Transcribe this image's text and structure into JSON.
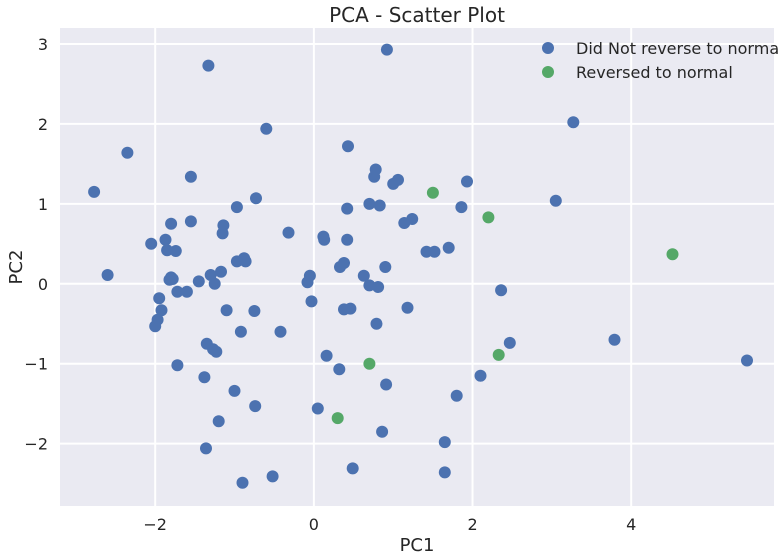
{
  "chart_data": {
    "type": "scatter",
    "title": "PCA - Scatter Plot",
    "xlabel": "PC1",
    "ylabel": "PC2",
    "xlim": [
      -3.2,
      5.8
    ],
    "ylim": [
      -2.78,
      3.2
    ],
    "xticks": [
      -2,
      0,
      2,
      4
    ],
    "yticks": [
      -2,
      -1,
      0,
      1,
      2,
      3
    ],
    "xtick_labels": [
      "−2",
      "0",
      "2",
      "4"
    ],
    "ytick_labels": [
      "−2",
      "−1",
      "0",
      "1",
      "2",
      "3"
    ],
    "grid": true,
    "legend_position": "top-right",
    "series": [
      {
        "name": "Did Not reverse to normal",
        "color": "#4C72B0",
        "points": [
          [
            -2.77,
            1.15
          ],
          [
            -2.6,
            0.11
          ],
          [
            -2.35,
            1.64
          ],
          [
            -2.05,
            0.5
          ],
          [
            -2.0,
            -0.53
          ],
          [
            -1.97,
            -0.45
          ],
          [
            -1.95,
            -0.18
          ],
          [
            -1.92,
            -0.33
          ],
          [
            -1.87,
            0.55
          ],
          [
            -1.85,
            0.42
          ],
          [
            -1.82,
            0.05
          ],
          [
            -1.8,
            0.08
          ],
          [
            -1.8,
            0.75
          ],
          [
            -1.78,
            0.06
          ],
          [
            -1.74,
            0.41
          ],
          [
            -1.72,
            -0.1
          ],
          [
            -1.72,
            -1.02
          ],
          [
            -1.6,
            -0.1
          ],
          [
            -1.55,
            1.34
          ],
          [
            -1.55,
            0.78
          ],
          [
            -1.45,
            0.03
          ],
          [
            -1.38,
            -1.17
          ],
          [
            -1.36,
            -2.06
          ],
          [
            -1.35,
            -0.75
          ],
          [
            -1.33,
            2.73
          ],
          [
            -1.3,
            0.11
          ],
          [
            -1.27,
            -0.82
          ],
          [
            -1.25,
            0.0
          ],
          [
            -1.23,
            -0.85
          ],
          [
            -1.2,
            -1.72
          ],
          [
            -1.17,
            0.15
          ],
          [
            -1.15,
            0.63
          ],
          [
            -1.14,
            0.73
          ],
          [
            -1.1,
            -0.33
          ],
          [
            -1.0,
            -1.34
          ],
          [
            -0.97,
            0.96
          ],
          [
            -0.97,
            0.28
          ],
          [
            -0.92,
            -0.6
          ],
          [
            -0.9,
            -2.49
          ],
          [
            -0.88,
            0.32
          ],
          [
            -0.86,
            0.28
          ],
          [
            -0.75,
            -0.34
          ],
          [
            -0.74,
            -1.53
          ],
          [
            -0.73,
            1.07
          ],
          [
            -0.6,
            1.94
          ],
          [
            -0.52,
            -2.41
          ],
          [
            -0.42,
            -0.6
          ],
          [
            -0.32,
            0.64
          ],
          [
            -0.08,
            0.02
          ],
          [
            -0.05,
            0.1
          ],
          [
            -0.03,
            -0.22
          ],
          [
            0.05,
            -1.56
          ],
          [
            0.12,
            0.59
          ],
          [
            0.13,
            0.55
          ],
          [
            0.16,
            -0.9
          ],
          [
            0.32,
            -1.07
          ],
          [
            0.33,
            0.21
          ],
          [
            0.38,
            -0.32
          ],
          [
            0.38,
            0.26
          ],
          [
            0.42,
            0.94
          ],
          [
            0.42,
            0.55
          ],
          [
            0.43,
            1.72
          ],
          [
            0.46,
            -0.31
          ],
          [
            0.49,
            -2.31
          ],
          [
            0.63,
            0.1
          ],
          [
            0.7,
            1.0
          ],
          [
            0.7,
            -0.02
          ],
          [
            0.76,
            1.34
          ],
          [
            0.78,
            1.43
          ],
          [
            0.79,
            -0.5
          ],
          [
            0.81,
            -0.04
          ],
          [
            0.83,
            0.98
          ],
          [
            0.86,
            -1.85
          ],
          [
            0.9,
            0.21
          ],
          [
            0.91,
            -1.26
          ],
          [
            0.92,
            2.93
          ],
          [
            1.0,
            1.25
          ],
          [
            1.06,
            1.3
          ],
          [
            1.14,
            0.76
          ],
          [
            1.18,
            -0.3
          ],
          [
            1.24,
            0.81
          ],
          [
            1.42,
            0.4
          ],
          [
            1.52,
            0.4
          ],
          [
            1.65,
            -1.98
          ],
          [
            1.65,
            -2.36
          ],
          [
            1.7,
            0.45
          ],
          [
            1.8,
            -1.4
          ],
          [
            1.86,
            0.96
          ],
          [
            1.93,
            1.28
          ],
          [
            2.1,
            -1.15
          ],
          [
            2.36,
            -0.08
          ],
          [
            2.47,
            -0.74
          ],
          [
            3.05,
            1.04
          ],
          [
            3.27,
            2.02
          ],
          [
            3.79,
            -0.7
          ],
          [
            5.46,
            -0.96
          ]
        ]
      },
      {
        "name": "Reversed to normal",
        "color": "#55A868",
        "points": [
          [
            0.3,
            -1.68
          ],
          [
            0.7,
            -1.0
          ],
          [
            1.5,
            1.14
          ],
          [
            2.2,
            0.83
          ],
          [
            2.33,
            -0.89
          ],
          [
            4.52,
            0.37
          ]
        ]
      }
    ]
  }
}
